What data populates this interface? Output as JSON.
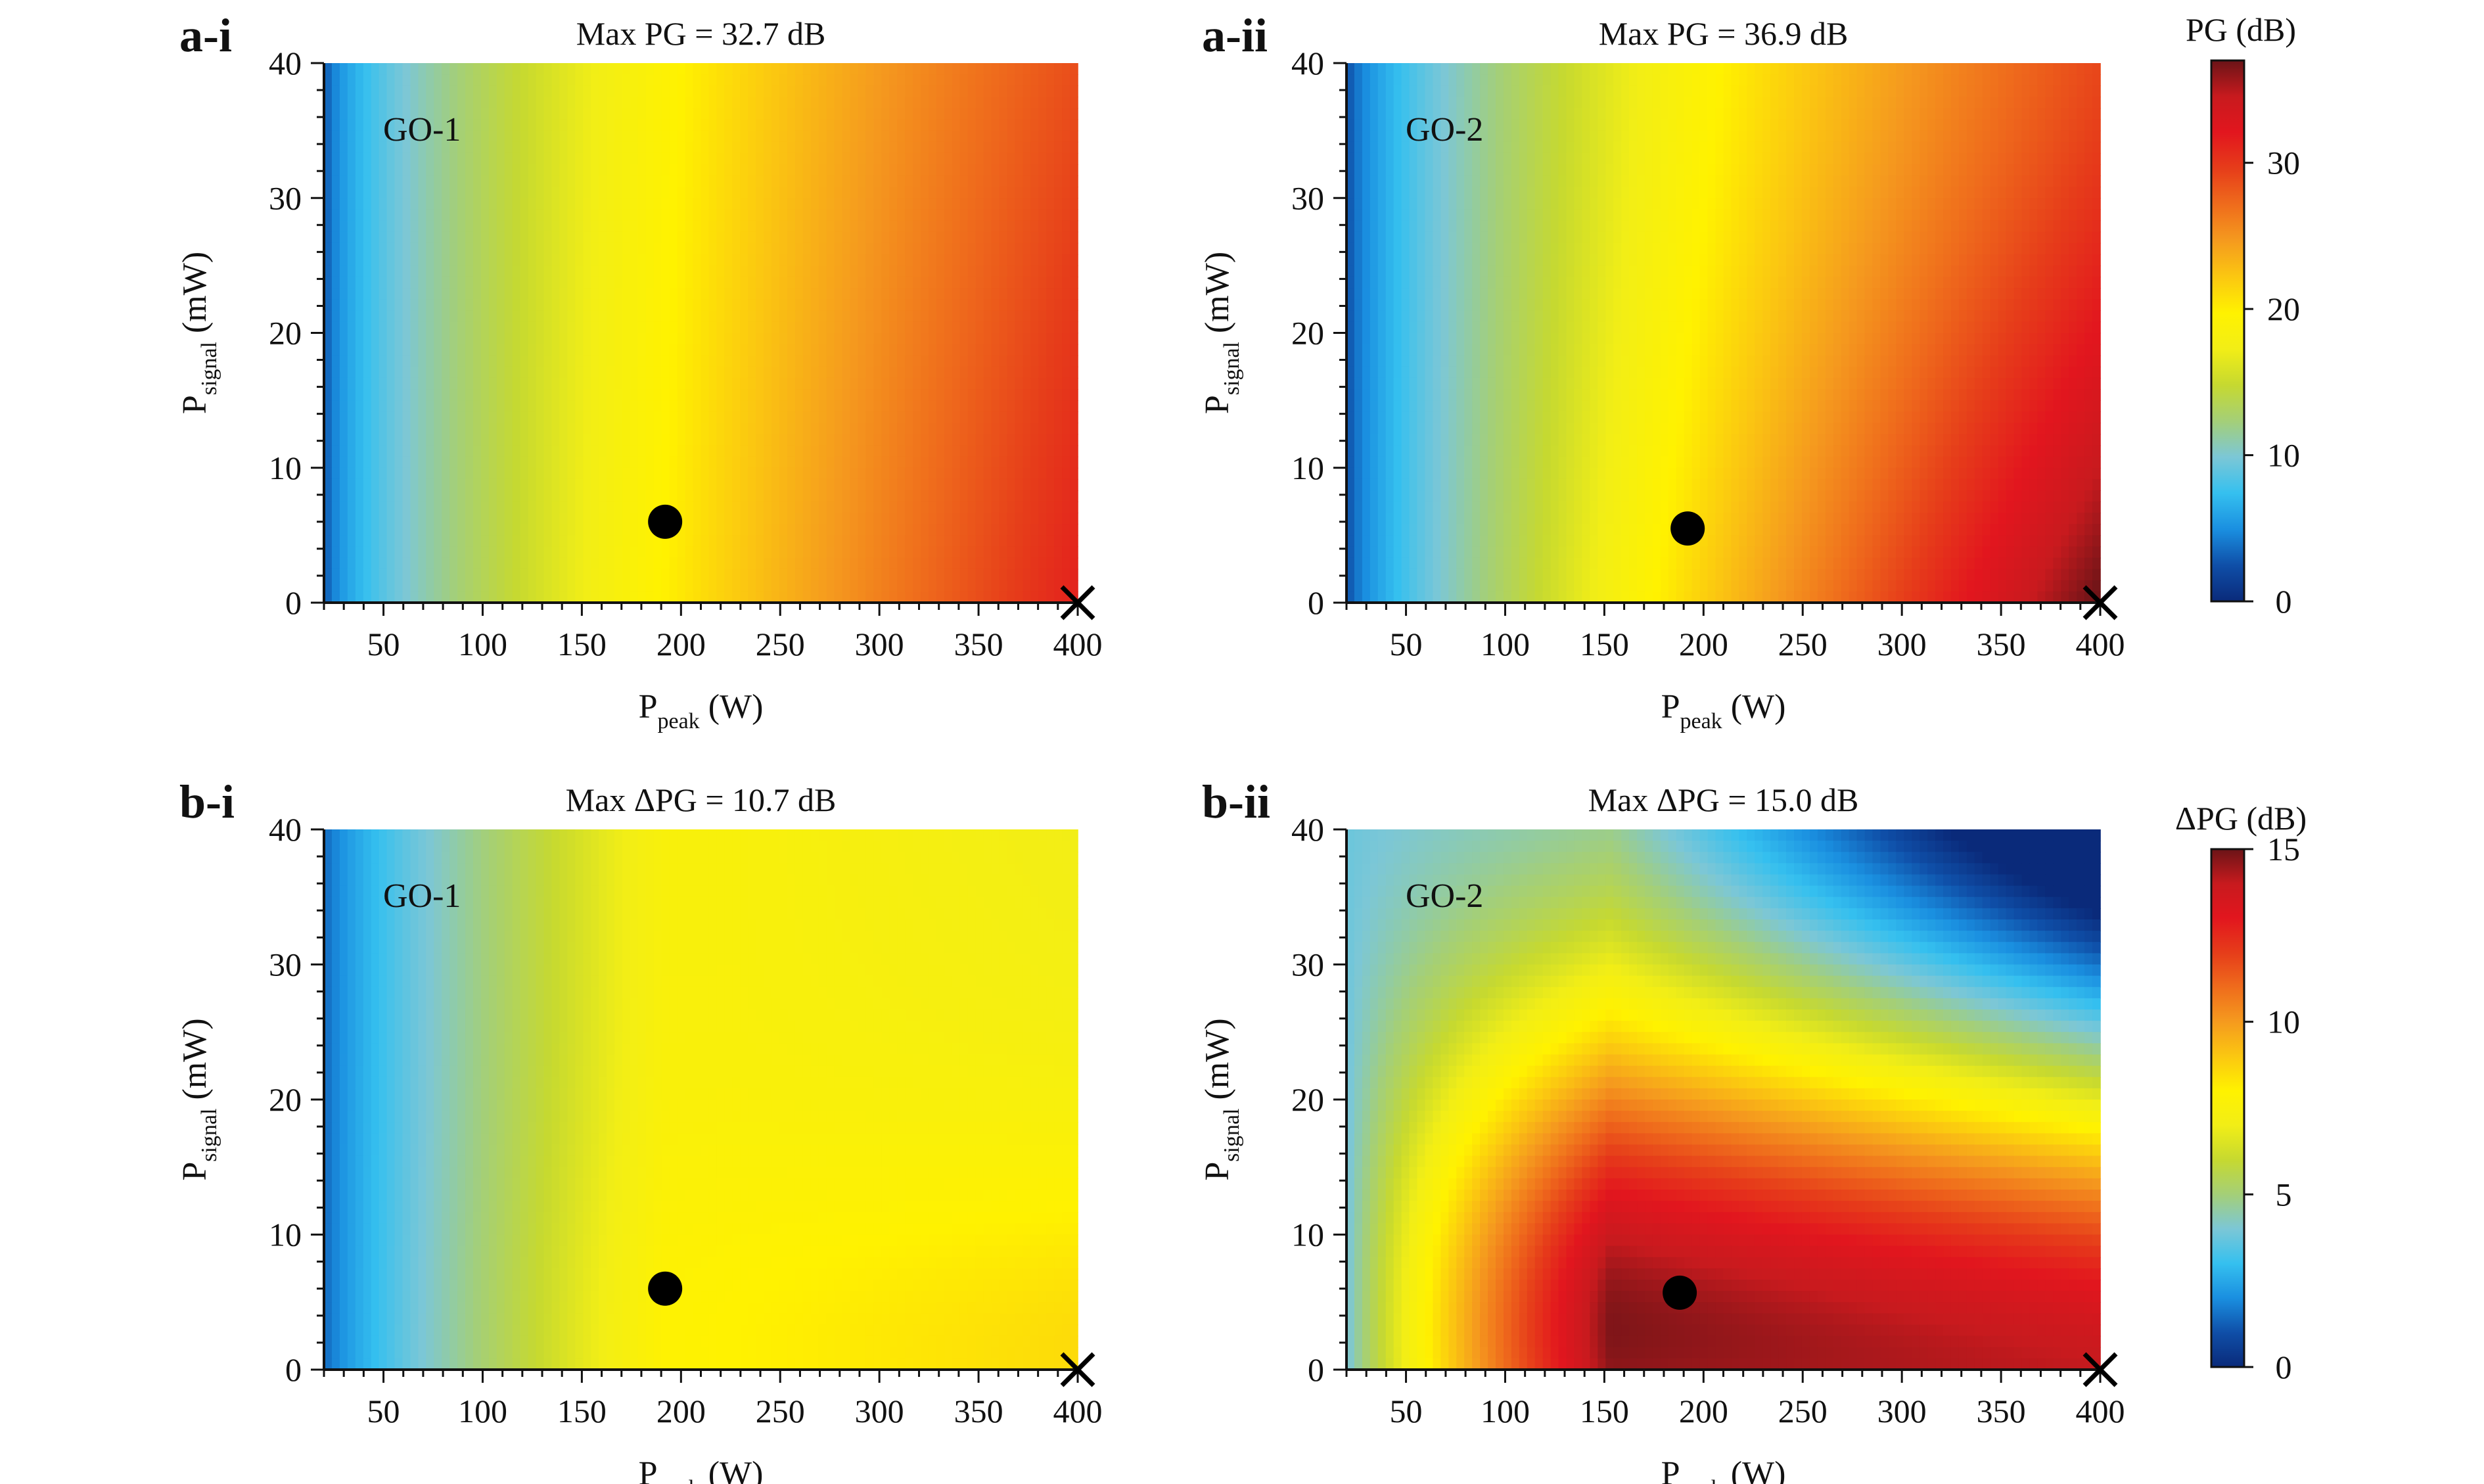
{
  "chart_data": [
    {
      "panel": "a-i",
      "type": "heatmap",
      "title": "Max PG = 32.7 dB",
      "annotation": "GO-1",
      "xlabel": {
        "main": "P",
        "sub": "peak",
        "unit": " (W)"
      },
      "ylabel": {
        "main": "P",
        "sub": "signal",
        "unit": " (mW)"
      },
      "xlim": [
        20,
        400
      ],
      "ylim": [
        0,
        40
      ],
      "xticks": [
        50,
        100,
        150,
        200,
        250,
        300,
        350,
        400
      ],
      "yticks": [
        0,
        10,
        20,
        30,
        40
      ],
      "colorscale_max": 37,
      "z_range": [
        0,
        32.7
      ],
      "marker_point": {
        "x": 192,
        "y": 6
      },
      "max_marker": {
        "x": 400,
        "y": 0
      },
      "shape": "a1"
    },
    {
      "panel": "a-ii",
      "type": "heatmap",
      "title": "Max PG = 36.9 dB",
      "annotation": "GO-2",
      "xlabel": {
        "main": "P",
        "sub": "peak",
        "unit": " (W)"
      },
      "ylabel": {
        "main": "P",
        "sub": "signal",
        "unit": " (mW)"
      },
      "xlim": [
        20,
        400
      ],
      "ylim": [
        0,
        40
      ],
      "xticks": [
        50,
        100,
        150,
        200,
        250,
        300,
        350,
        400
      ],
      "yticks": [
        0,
        10,
        20,
        30,
        40
      ],
      "colorscale_max": 37,
      "z_range": [
        0,
        36.9
      ],
      "marker_point": {
        "x": 192,
        "y": 5.5
      },
      "max_marker": {
        "x": 400,
        "y": 0
      },
      "shape": "a2"
    },
    {
      "panel": "b-i",
      "type": "heatmap",
      "title": "Max ΔPG = 10.7 dB",
      "annotation": "GO-1",
      "xlabel": {
        "main": "P",
        "sub": "peak",
        "unit": " (W)"
      },
      "ylabel": {
        "main": "P",
        "sub": "signal",
        "unit": " (mW)"
      },
      "xlim": [
        20,
        400
      ],
      "ylim": [
        0,
        40
      ],
      "xticks": [
        50,
        100,
        150,
        200,
        250,
        300,
        350,
        400
      ],
      "yticks": [
        0,
        10,
        20,
        30,
        40
      ],
      "colorscale_max": 15,
      "z_range": [
        0,
        10.7
      ],
      "marker_point": {
        "x": 192,
        "y": 6
      },
      "max_marker": {
        "x": 400,
        "y": 0
      },
      "shape": "b1"
    },
    {
      "panel": "b-ii",
      "type": "heatmap",
      "title": "Max ΔPG = 15.0 dB",
      "annotation": "GO-2",
      "xlabel": {
        "main": "P",
        "sub": "peak",
        "unit": " (W)"
      },
      "ylabel": {
        "main": "P",
        "sub": "signal",
        "unit": " (mW)"
      },
      "xlim": [
        20,
        400
      ],
      "ylim": [
        0,
        40
      ],
      "xticks": [
        50,
        100,
        150,
        200,
        250,
        300,
        350,
        400
      ],
      "yticks": [
        0,
        10,
        20,
        30,
        40
      ],
      "colorscale_max": 15,
      "z_range": [
        0,
        15.0
      ],
      "marker_point": {
        "x": 188,
        "y": 5.7
      },
      "max_marker": {
        "x": 400,
        "y": 0
      },
      "shape": "b2"
    }
  ],
  "colorbars": [
    {
      "title": "PG (dB)",
      "min": 0,
      "max": 37,
      "ticks": [
        0,
        10,
        20,
        30
      ]
    },
    {
      "title": "ΔPG (dB)",
      "min": 0,
      "max": 15,
      "ticks": [
        0,
        5,
        10,
        15
      ]
    }
  ],
  "colormap": [
    "#0a2a7a",
    "#0f4fa8",
    "#1a8fe0",
    "#35c0ef",
    "#7cc7d6",
    "#a4cf78",
    "#c6d930",
    "#f2ee16",
    "#fff200",
    "#fbc711",
    "#f59a1e",
    "#ef6c1c",
    "#e63d1a",
    "#e2161e",
    "#c81a1e",
    "#6b1417"
  ]
}
